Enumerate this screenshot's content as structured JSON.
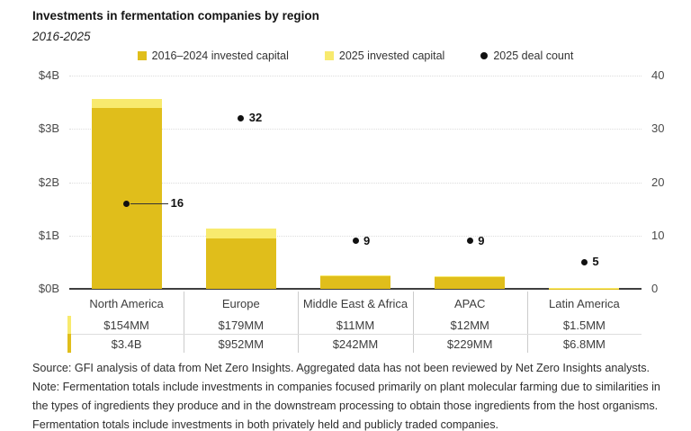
{
  "header": {
    "title": "Investments in fermentation companies by region",
    "subtitle": "2016-2025"
  },
  "legend": [
    {
      "icon": "square-swatch",
      "label": "2016–2024 invested capital",
      "color": "#E0BE1B"
    },
    {
      "icon": "square-swatch",
      "label": "2025 invested capital",
      "color": "#F8EA6E"
    },
    {
      "icon": "dot-swatch",
      "label": "2025 deal count",
      "color": "#111111"
    }
  ],
  "chart_data": {
    "type": "bar",
    "subtype": "stacked-bars-with-deal-count-dots",
    "categories": [
      "North America",
      "Europe",
      "Middle East & Africa",
      "APAC",
      "Latin America"
    ],
    "series": [
      {
        "name": "2016–2024 invested capital",
        "unit": "$B",
        "values": [
          3.4,
          0.952,
          0.242,
          0.229,
          0.0068
        ],
        "labels": [
          "$3.4B",
          "$952MM",
          "$242MM",
          "$229MM",
          "$6.8MM"
        ],
        "color": "#E0BE1B"
      },
      {
        "name": "2025 invested capital",
        "unit": "$B",
        "values": [
          0.154,
          0.179,
          0.011,
          0.012,
          0.0015
        ],
        "labels": [
          "$154MM",
          "$179MM",
          "$11MM",
          "$12MM",
          "$1.5MM"
        ],
        "color": "#F8EA6E"
      }
    ],
    "dots": {
      "name": "2025 deal count",
      "values": [
        16,
        32,
        9,
        9,
        5
      ],
      "color": "#111111"
    },
    "left_axis": {
      "tick_labels": [
        "$0B",
        "$1B",
        "$2B",
        "$3B",
        "$4B"
      ],
      "tick_values": [
        0,
        1,
        2,
        3,
        4
      ],
      "lim": [
        0,
        4
      ]
    },
    "right_axis": {
      "tick_labels": [
        "0",
        "10",
        "20",
        "30",
        "40"
      ],
      "tick_values": [
        0,
        10,
        20,
        30,
        40
      ],
      "lim": [
        0,
        40
      ]
    },
    "grid": "dotted-horizontal",
    "legend_position": "top-center"
  },
  "source_note": "Source: GFI analysis of data from Net Zero Insights. Aggregated data has not been reviewed by Net Zero Insights analysts. Note: Fermentation totals include investments in companies focused primarily on plant molecular farming due to similarities in the types of ingredients they produce and in the downstream processing to obtain those ingredients from the host organisms. Fermentation totals include investments in both privately held and publicly traded companies."
}
